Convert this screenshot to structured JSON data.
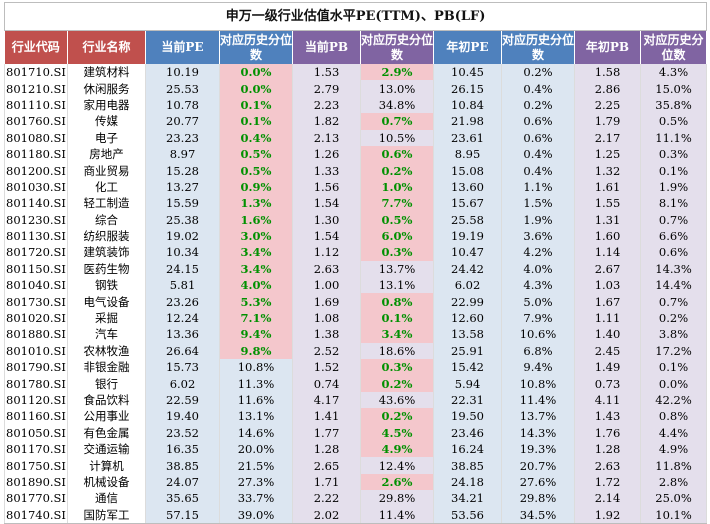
{
  "title": "申万一级行业估值水平PE(TTM)、PB(LF)",
  "headers": [
    "行业代码",
    "行业名称",
    "当前PE",
    "对应历史分位数",
    "当前PB",
    "对应历史分位数",
    "年初PE",
    "对应历史分位数",
    "年初PB",
    "对应历史分位数"
  ],
  "colors": {
    "header_red": "#c0504d",
    "header_blue": "#4f81bd",
    "header_purple": "#8064a2",
    "highlight_pink": "#f4c7cc",
    "green_text": "#009100",
    "band_blue": "#dce6f1",
    "band_purple": "#e4dfec"
  },
  "rows": [
    {
      "code": "801710.SI",
      "name": "建筑材料",
      "pe": "10.19",
      "pe_pct": "0.0%",
      "pb": "1.53",
      "pb_pct": "2.9%",
      "pe0": "10.45",
      "pe0_pct": "0.2%",
      "pb0": "1.58",
      "pb0_pct": "4.3%",
      "hl_pe": true,
      "hl_pb": true
    },
    {
      "code": "801210.SI",
      "name": "休闲服务",
      "pe": "25.53",
      "pe_pct": "0.0%",
      "pb": "2.79",
      "pb_pct": "13.0%",
      "pe0": "26.15",
      "pe0_pct": "0.4%",
      "pb0": "2.86",
      "pb0_pct": "15.0%",
      "hl_pe": true,
      "hl_pb": false
    },
    {
      "code": "801110.SI",
      "name": "家用电器",
      "pe": "10.78",
      "pe_pct": "0.1%",
      "pb": "2.23",
      "pb_pct": "34.8%",
      "pe0": "10.84",
      "pe0_pct": "0.2%",
      "pb0": "2.25",
      "pb0_pct": "35.8%",
      "hl_pe": true,
      "hl_pb": false
    },
    {
      "code": "801760.SI",
      "name": "传媒",
      "pe": "20.77",
      "pe_pct": "0.1%",
      "pb": "1.82",
      "pb_pct": "0.7%",
      "pe0": "21.98",
      "pe0_pct": "0.6%",
      "pb0": "1.79",
      "pb0_pct": "0.5%",
      "hl_pe": true,
      "hl_pb": true
    },
    {
      "code": "801080.SI",
      "name": "电子",
      "pe": "23.23",
      "pe_pct": "0.4%",
      "pb": "2.13",
      "pb_pct": "10.5%",
      "pe0": "23.61",
      "pe0_pct": "0.6%",
      "pb0": "2.17",
      "pb0_pct": "11.1%",
      "hl_pe": true,
      "hl_pb": false
    },
    {
      "code": "801180.SI",
      "name": "房地产",
      "pe": "8.97",
      "pe_pct": "0.5%",
      "pb": "1.26",
      "pb_pct": "0.6%",
      "pe0": "8.95",
      "pe0_pct": "0.4%",
      "pb0": "1.25",
      "pb0_pct": "0.3%",
      "hl_pe": true,
      "hl_pb": true
    },
    {
      "code": "801200.SI",
      "name": "商业贸易",
      "pe": "15.28",
      "pe_pct": "0.5%",
      "pb": "1.33",
      "pb_pct": "0.2%",
      "pe0": "15.08",
      "pe0_pct": "0.4%",
      "pb0": "1.32",
      "pb0_pct": "0.1%",
      "hl_pe": true,
      "hl_pb": true
    },
    {
      "code": "801030.SI",
      "name": "化工",
      "pe": "13.27",
      "pe_pct": "0.9%",
      "pb": "1.56",
      "pb_pct": "1.0%",
      "pe0": "13.60",
      "pe0_pct": "1.1%",
      "pb0": "1.61",
      "pb0_pct": "1.9%",
      "hl_pe": true,
      "hl_pb": true
    },
    {
      "code": "801140.SI",
      "name": "轻工制造",
      "pe": "15.59",
      "pe_pct": "1.3%",
      "pb": "1.54",
      "pb_pct": "7.7%",
      "pe0": "15.67",
      "pe0_pct": "1.5%",
      "pb0": "1.55",
      "pb0_pct": "8.1%",
      "hl_pe": true,
      "hl_pb": true
    },
    {
      "code": "801230.SI",
      "name": "综合",
      "pe": "25.38",
      "pe_pct": "1.6%",
      "pb": "1.30",
      "pb_pct": "0.5%",
      "pe0": "25.58",
      "pe0_pct": "1.9%",
      "pb0": "1.31",
      "pb0_pct": "0.7%",
      "hl_pe": true,
      "hl_pb": true
    },
    {
      "code": "801130.SI",
      "name": "纺织服装",
      "pe": "19.02",
      "pe_pct": "3.0%",
      "pb": "1.54",
      "pb_pct": "6.0%",
      "pe0": "19.19",
      "pe0_pct": "3.6%",
      "pb0": "1.60",
      "pb0_pct": "6.6%",
      "hl_pe": true,
      "hl_pb": true
    },
    {
      "code": "801720.SI",
      "name": "建筑装饰",
      "pe": "10.34",
      "pe_pct": "3.4%",
      "pb": "1.12",
      "pb_pct": "0.3%",
      "pe0": "10.47",
      "pe0_pct": "4.2%",
      "pb0": "1.14",
      "pb0_pct": "0.6%",
      "hl_pe": true,
      "hl_pb": true
    },
    {
      "code": "801150.SI",
      "name": "医药生物",
      "pe": "24.15",
      "pe_pct": "3.4%",
      "pb": "2.63",
      "pb_pct": "13.7%",
      "pe0": "24.42",
      "pe0_pct": "4.0%",
      "pb0": "2.67",
      "pb0_pct": "14.3%",
      "hl_pe": true,
      "hl_pb": false
    },
    {
      "code": "801040.SI",
      "name": "钢铁",
      "pe": "5.81",
      "pe_pct": "4.0%",
      "pb": "1.00",
      "pb_pct": "13.1%",
      "pe0": "6.02",
      "pe0_pct": "4.3%",
      "pb0": "1.03",
      "pb0_pct": "14.4%",
      "hl_pe": true,
      "hl_pb": false
    },
    {
      "code": "801730.SI",
      "name": "电气设备",
      "pe": "23.26",
      "pe_pct": "5.3%",
      "pb": "1.69",
      "pb_pct": "0.8%",
      "pe0": "22.99",
      "pe0_pct": "5.0%",
      "pb0": "1.67",
      "pb0_pct": "0.7%",
      "hl_pe": true,
      "hl_pb": true
    },
    {
      "code": "801020.SI",
      "name": "采掘",
      "pe": "12.24",
      "pe_pct": "7.1%",
      "pb": "1.08",
      "pb_pct": "0.1%",
      "pe0": "12.60",
      "pe0_pct": "7.9%",
      "pb0": "1.11",
      "pb0_pct": "0.2%",
      "hl_pe": true,
      "hl_pb": true
    },
    {
      "code": "801880.SI",
      "name": "汽车",
      "pe": "13.36",
      "pe_pct": "9.4%",
      "pb": "1.38",
      "pb_pct": "3.4%",
      "pe0": "13.58",
      "pe0_pct": "10.6%",
      "pb0": "1.40",
      "pb0_pct": "3.8%",
      "hl_pe": true,
      "hl_pb": true
    },
    {
      "code": "801010.SI",
      "name": "农林牧渔",
      "pe": "26.64",
      "pe_pct": "9.8%",
      "pb": "2.52",
      "pb_pct": "18.6%",
      "pe0": "25.91",
      "pe0_pct": "6.8%",
      "pb0": "2.45",
      "pb0_pct": "17.2%",
      "hl_pe": true,
      "hl_pb": false
    },
    {
      "code": "801790.SI",
      "name": "非银金融",
      "pe": "15.73",
      "pe_pct": "10.8%",
      "pb": "1.52",
      "pb_pct": "0.3%",
      "pe0": "15.42",
      "pe0_pct": "9.4%",
      "pb0": "1.49",
      "pb0_pct": "0.1%",
      "hl_pe": false,
      "hl_pb": true
    },
    {
      "code": "801780.SI",
      "name": "银行",
      "pe": "6.02",
      "pe_pct": "11.3%",
      "pb": "0.74",
      "pb_pct": "0.2%",
      "pe0": "5.94",
      "pe0_pct": "10.8%",
      "pb0": "0.73",
      "pb0_pct": "0.0%",
      "hl_pe": false,
      "hl_pb": true
    },
    {
      "code": "801120.SI",
      "name": "食品饮料",
      "pe": "22.59",
      "pe_pct": "11.6%",
      "pb": "4.17",
      "pb_pct": "43.6%",
      "pe0": "22.31",
      "pe0_pct": "11.4%",
      "pb0": "4.11",
      "pb0_pct": "42.2%",
      "hl_pe": false,
      "hl_pb": false
    },
    {
      "code": "801160.SI",
      "name": "公用事业",
      "pe": "19.40",
      "pe_pct": "13.1%",
      "pb": "1.41",
      "pb_pct": "0.2%",
      "pe0": "19.50",
      "pe0_pct": "13.7%",
      "pb0": "1.43",
      "pb0_pct": "0.8%",
      "hl_pe": false,
      "hl_pb": true
    },
    {
      "code": "801050.SI",
      "name": "有色金属",
      "pe": "23.52",
      "pe_pct": "14.6%",
      "pb": "1.77",
      "pb_pct": "4.5%",
      "pe0": "23.46",
      "pe0_pct": "14.3%",
      "pb0": "1.76",
      "pb0_pct": "4.4%",
      "hl_pe": false,
      "hl_pb": true
    },
    {
      "code": "801170.SI",
      "name": "交通运输",
      "pe": "16.35",
      "pe_pct": "20.0%",
      "pb": "1.28",
      "pb_pct": "4.9%",
      "pe0": "16.24",
      "pe0_pct": "19.3%",
      "pb0": "1.28",
      "pb0_pct": "4.9%",
      "hl_pe": false,
      "hl_pb": true
    },
    {
      "code": "801750.SI",
      "name": "计算机",
      "pe": "38.85",
      "pe_pct": "21.5%",
      "pb": "2.65",
      "pb_pct": "12.4%",
      "pe0": "38.85",
      "pe0_pct": "20.7%",
      "pb0": "2.63",
      "pb0_pct": "11.8%",
      "hl_pe": false,
      "hl_pb": false
    },
    {
      "code": "801890.SI",
      "name": "机械设备",
      "pe": "24.07",
      "pe_pct": "27.3%",
      "pb": "1.71",
      "pb_pct": "2.6%",
      "pe0": "24.18",
      "pe0_pct": "27.6%",
      "pb0": "1.72",
      "pb0_pct": "2.8%",
      "hl_pe": false,
      "hl_pb": true
    },
    {
      "code": "801770.SI",
      "name": "通信",
      "pe": "35.65",
      "pe_pct": "33.7%",
      "pb": "2.22",
      "pb_pct": "29.8%",
      "pe0": "34.21",
      "pe0_pct": "29.8%",
      "pb0": "2.14",
      "pb0_pct": "25.0%",
      "hl_pe": false,
      "hl_pb": false
    },
    {
      "code": "801740.SI",
      "name": "国防军工",
      "pe": "57.15",
      "pe_pct": "39.0%",
      "pb": "2.02",
      "pb_pct": "11.4%",
      "pe0": "53.56",
      "pe0_pct": "34.5%",
      "pb0": "1.92",
      "pb0_pct": "10.1%",
      "hl_pe": false,
      "hl_pb": false
    }
  ]
}
